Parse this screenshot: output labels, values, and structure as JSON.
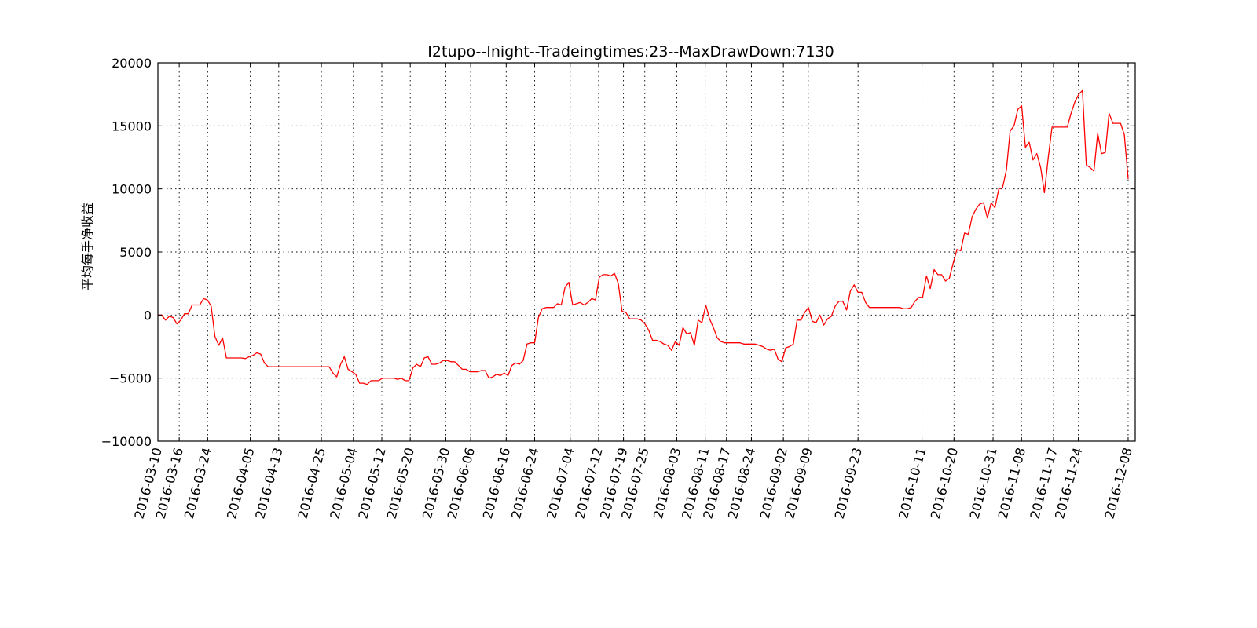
{
  "chart_data": {
    "type": "line",
    "title": "I2tupo--Inight--Tradeingtimes:23--MaxDrawDown:7130",
    "xlabel": "",
    "ylabel": "平均每手净收益",
    "ylim": [
      -10000,
      20000
    ],
    "yticks": [
      -10000,
      -5000,
      0,
      5000,
      10000,
      15000,
      20000
    ],
    "ytick_labels": [
      "−10000",
      "−5000",
      "0",
      "5000",
      "10000",
      "15000",
      "20000"
    ],
    "xlim": [
      "2016-03-10",
      "2016-12-10"
    ],
    "xticks": [
      "2016-03-10",
      "2016-03-16",
      "2016-03-24",
      "2016-04-05",
      "2016-04-13",
      "2016-04-25",
      "2016-05-04",
      "2016-05-12",
      "2016-05-20",
      "2016-05-30",
      "2016-06-06",
      "2016-06-16",
      "2016-06-24",
      "2016-07-04",
      "2016-07-12",
      "2016-07-19",
      "2016-07-25",
      "2016-08-03",
      "2016-08-11",
      "2016-08-17",
      "2016-08-24",
      "2016-09-02",
      "2016-09-09",
      "2016-09-23",
      "2016-10-11",
      "2016-10-20",
      "2016-10-31",
      "2016-11-08",
      "2016-11-17",
      "2016-11-24",
      "2016-12-08"
    ],
    "grid": true,
    "color": "#ff0000",
    "series": [
      {
        "color": "#ff0000",
        "y": [
          0,
          0,
          -400,
          -100,
          -200,
          -700,
          -400,
          100,
          100,
          800,
          800,
          800,
          1300,
          1200,
          700,
          -1700,
          -2400,
          -1800,
          -3400,
          -3400,
          -3400,
          -3400,
          -3400,
          -3450,
          -3300,
          -3200,
          -3000,
          -3100,
          -3800,
          -4100,
          -4100,
          -4100,
          -4100,
          -4100,
          -4100,
          -4100,
          -4100,
          -4100,
          -4100,
          -4100,
          -4100,
          -4100,
          -4100,
          -4100,
          -4100,
          -4100,
          -4600,
          -4900,
          -3900,
          -3300,
          -4300,
          -4500,
          -4700,
          -5400,
          -5400,
          -5500,
          -5200,
          -5200,
          -5200,
          -5000,
          -5000,
          -5000,
          -5000,
          -5100,
          -5000,
          -5200,
          -5200,
          -4200,
          -3900,
          -4100,
          -3400,
          -3300,
          -3900,
          -3900,
          -3800,
          -3600,
          -3600,
          -3700,
          -3700,
          -4000,
          -4300,
          -4300,
          -4500,
          -4500,
          -4500,
          -4400,
          -4400,
          -5000,
          -4900,
          -4700,
          -4800,
          -4600,
          -4800,
          -4000,
          -3800,
          -3900,
          -3600,
          -2300,
          -2200,
          -2200,
          -200,
          500,
          600,
          600,
          600,
          900,
          800,
          2200,
          2600,
          800,
          900,
          1000,
          800,
          1000,
          1300,
          1200,
          3000,
          3200,
          3200,
          3100,
          3300,
          2500,
          300,
          200,
          -300,
          -300,
          -300,
          -400,
          -700,
          -1200,
          -2000,
          -2000,
          -2100,
          -2300,
          -2400,
          -2800,
          -2100,
          -2400,
          -1000,
          -1500,
          -1400,
          -2400,
          -400,
          -600,
          800,
          -300,
          -1000,
          -1800,
          -2100,
          -2200,
          -2200,
          -2200,
          -2200,
          -2200,
          -2300,
          -2300,
          -2300,
          -2300,
          -2400,
          -2500,
          -2700,
          -2800,
          -2700,
          -3500,
          -3700,
          -2600,
          -2500,
          -2300,
          -400,
          -400,
          200,
          600,
          -500,
          -600,
          0,
          -800,
          -300,
          -100,
          700,
          1100,
          1100,
          400,
          1900,
          2400,
          1800,
          1800,
          1000,
          600,
          600,
          600,
          600,
          600,
          600,
          600,
          600,
          600,
          500,
          500,
          600,
          1100,
          1400,
          1400,
          3100,
          2100,
          3600,
          3200,
          3200,
          2700,
          2900,
          4100,
          5200,
          5100,
          6500,
          6400,
          7800,
          8400,
          8800,
          8900,
          7700,
          8900,
          8500,
          10000,
          10100,
          11500,
          14600,
          15000,
          16300,
          16600,
          13300,
          13700,
          12300,
          12800,
          11700,
          9700,
          12500,
          14900,
          14900,
          14900,
          14900,
          14900,
          16000,
          16900,
          17500,
          17800,
          11900,
          11700,
          11400,
          14400,
          12800,
          12900,
          16000,
          15200,
          15200,
          15200,
          14300,
          10800
        ]
      }
    ]
  }
}
